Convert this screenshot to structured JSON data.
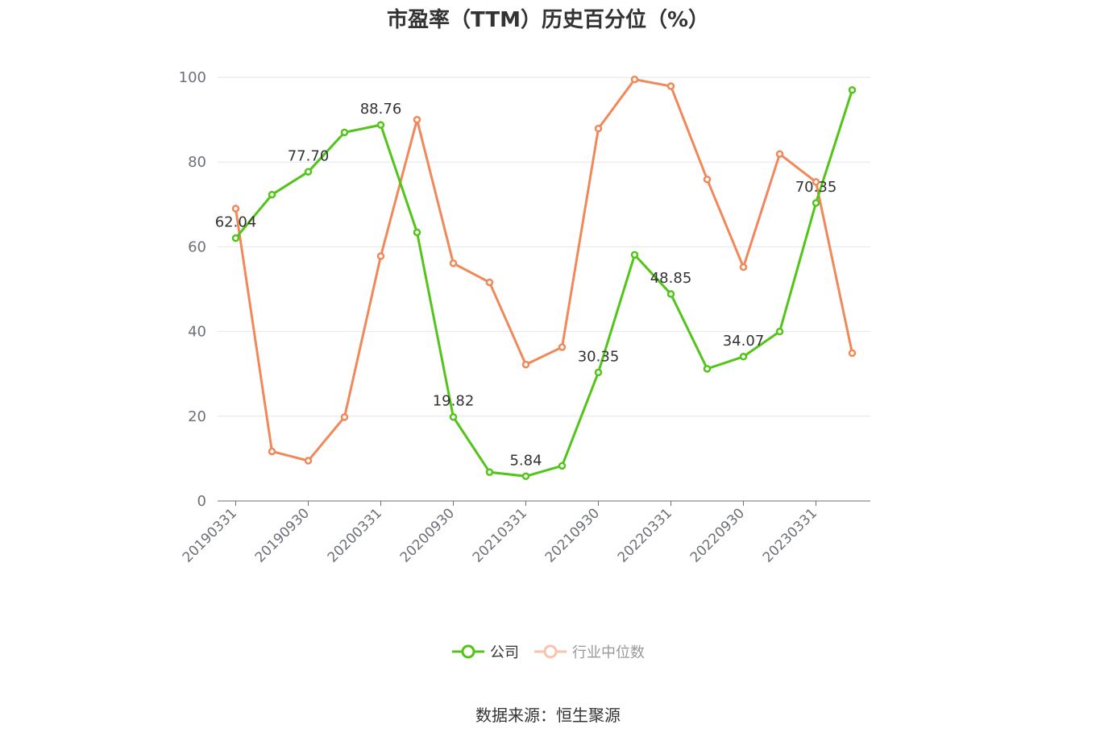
{
  "chart_data": {
    "type": "line",
    "title": "市盈率（TTM）历史百分位（%）",
    "x": [
      "20190331",
      "20190630",
      "20190930",
      "20191231",
      "20200331",
      "20200630",
      "20200930",
      "20201231",
      "20210331",
      "20210630",
      "20210930",
      "20211231",
      "20220331",
      "20220630",
      "20220930",
      "20221231",
      "20230331",
      "20230630"
    ],
    "x_tick_labels": [
      "20190331",
      "20190930",
      "20200331",
      "20200930",
      "20210331",
      "20210930",
      "20220331",
      "20220930",
      "20230331"
    ],
    "ylim": [
      0,
      100
    ],
    "y_ticks": [
      0,
      20,
      40,
      60,
      80,
      100
    ],
    "grid": true,
    "legend_position": "bottom-center",
    "series": [
      {
        "name": "公司",
        "color": "#52c41a",
        "values": [
          62.04,
          72.3,
          77.7,
          87.0,
          88.76,
          63.4,
          19.82,
          6.8,
          5.84,
          8.3,
          30.35,
          58.1,
          48.85,
          31.2,
          34.07,
          40.0,
          70.35,
          97.0
        ],
        "labels": {
          "0": "62.04",
          "2": "77.70",
          "4": "88.76",
          "6": "19.82",
          "8": "5.84",
          "10": "30.35",
          "12": "48.85",
          "14": "34.07",
          "16": "70.35"
        }
      },
      {
        "name": "行业中位数",
        "color": "#f0885a",
        "values": [
          69.0,
          11.7,
          9.5,
          19.8,
          57.8,
          90.0,
          56.1,
          51.6,
          32.2,
          36.3,
          87.9,
          99.5,
          97.9,
          75.9,
          55.2,
          81.9,
          75.3,
          34.9
        ]
      }
    ]
  },
  "legend": {
    "company": "公司",
    "industry": "行业中位数"
  },
  "source": "数据来源：恒生聚源"
}
